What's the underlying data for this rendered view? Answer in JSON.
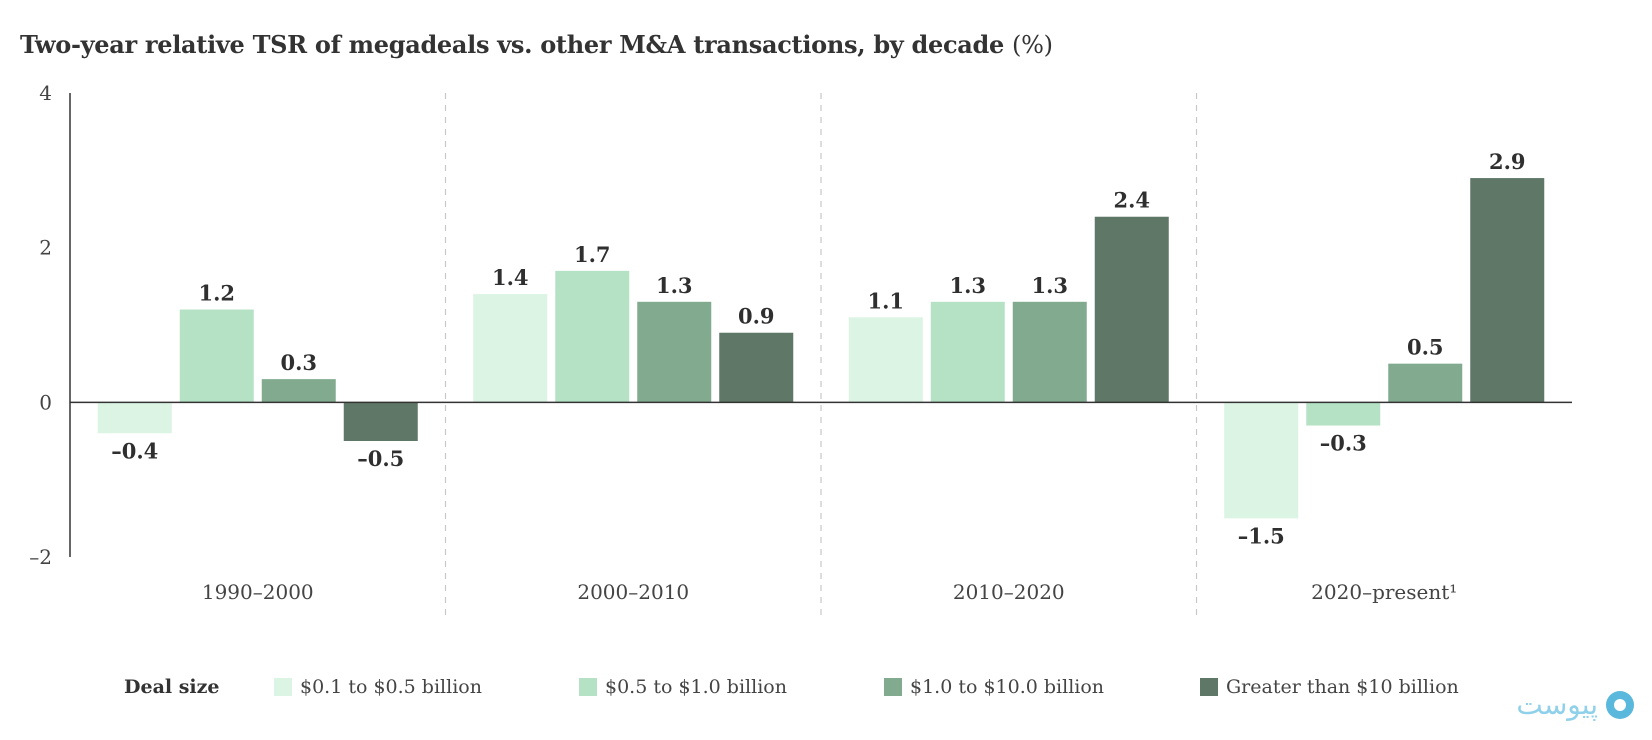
{
  "title": "Two-year relative TSR of megadeals vs. other M&A transactions, by decade",
  "title_unit": "(%)",
  "chart_data": {
    "type": "bar",
    "title": "Two-year relative TSR of megadeals vs. other M&A transactions, by decade (%)",
    "categories": [
      "1990–2000",
      "2000–2010",
      "2010–2020",
      "2020–present¹"
    ],
    "series": [
      {
        "name": "$0.1 to $0.5 billion",
        "values": [
          -0.4,
          1.4,
          1.1,
          -1.5
        ],
        "labels": [
          "–0.4",
          "1.4",
          "1.1",
          "–1.5"
        ],
        "color": "#dcf4e4"
      },
      {
        "name": "$0.5 to $1.0 billion",
        "values": [
          1.2,
          1.7,
          1.3,
          -0.3
        ],
        "labels": [
          "1.2",
          "1.7",
          "1.3",
          "–0.3"
        ],
        "color": "#b5e2c5"
      },
      {
        "name": "$1.0 to $10.0 billion",
        "values": [
          0.3,
          1.3,
          1.3,
          0.5
        ],
        "labels": [
          "0.3",
          "1.3",
          "1.3",
          "0.5"
        ],
        "color": "#82aa8f"
      },
      {
        "name": "Greater than $10 billion",
        "values": [
          -0.5,
          0.9,
          2.4,
          2.9
        ],
        "labels": [
          "–0.5",
          "0.9",
          "2.4",
          "2.9"
        ],
        "color": "#5f7766"
      }
    ],
    "ylim": [
      -2,
      4
    ],
    "yticks": [
      4,
      2,
      0,
      -2
    ],
    "ytick_labels": [
      "4",
      "2",
      "0",
      "–2"
    ],
    "grid": false,
    "legend": {
      "position": "bottom",
      "title": "Deal size"
    }
  },
  "watermark": {
    "text": "پیوست"
  }
}
